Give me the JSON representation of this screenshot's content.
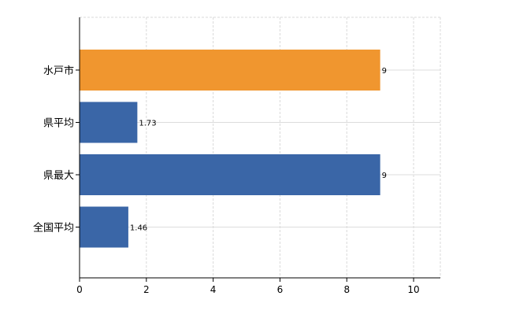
{
  "chart_data": {
    "type": "bar",
    "orientation": "horizontal",
    "categories": [
      "水戸市",
      "県平均",
      "県最大",
      "全国平均"
    ],
    "values": [
      9,
      1.73,
      9,
      1.46
    ],
    "data_labels": [
      "9",
      "1.73",
      "9",
      "1.46"
    ],
    "bar_colors": [
      "#f0962f",
      "#3a66a7",
      "#3a66a7",
      "#3a66a7"
    ],
    "xlim": [
      0,
      10.8
    ],
    "x_ticks": [
      0,
      2,
      4,
      6,
      8,
      10
    ],
    "x_tick_labels": [
      "0",
      "2",
      "4",
      "6",
      "8",
      "10"
    ],
    "title": "",
    "xlabel": "",
    "ylabel": "",
    "grid": true,
    "legend": "none"
  }
}
